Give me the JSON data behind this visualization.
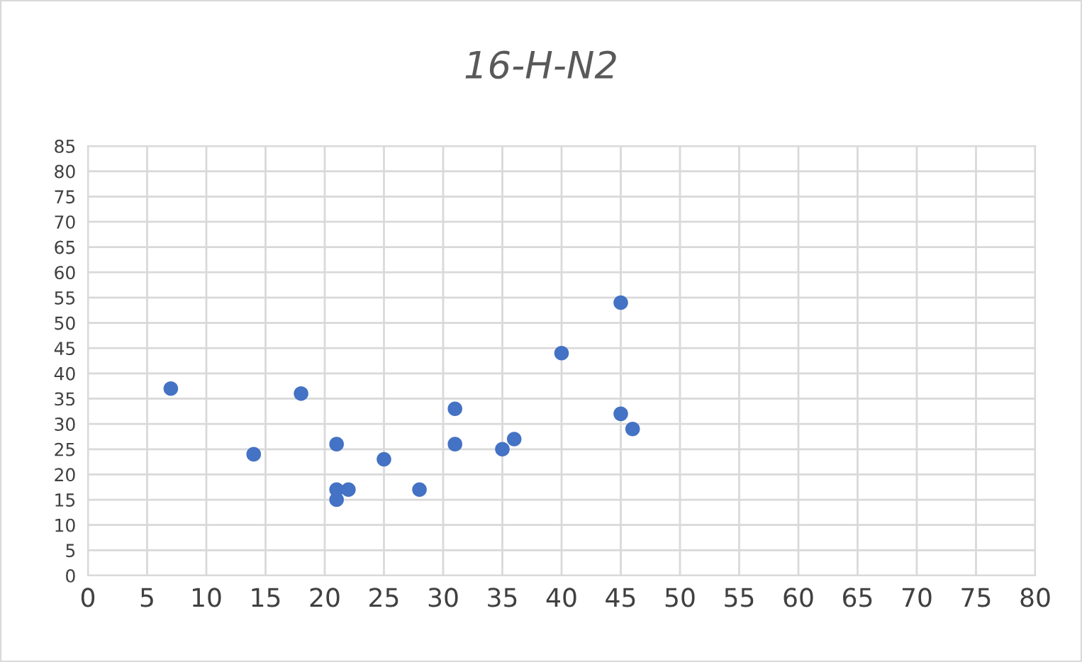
{
  "chart_data": {
    "type": "scatter",
    "title": "16-H-N2",
    "x": [
      7,
      14,
      18,
      21,
      21,
      21,
      22,
      25,
      28,
      31,
      31,
      35,
      36,
      40,
      45,
      45,
      46
    ],
    "values": [
      37,
      24,
      36,
      26,
      17,
      15,
      17,
      23,
      17,
      33,
      26,
      25,
      27,
      44,
      54,
      32,
      29
    ],
    "color": "#4472c4",
    "marker": "circle",
    "grid": true,
    "xlim": [
      0,
      80
    ],
    "xticks": [
      0,
      5,
      10,
      15,
      20,
      25,
      30,
      35,
      40,
      45,
      50,
      55,
      60,
      65,
      70,
      75,
      80
    ],
    "ylim": [
      0,
      85
    ],
    "yticks": [
      0,
      5,
      10,
      15,
      20,
      25,
      30,
      35,
      40,
      45,
      50,
      55,
      60,
      65,
      70,
      75,
      80,
      85
    ]
  }
}
